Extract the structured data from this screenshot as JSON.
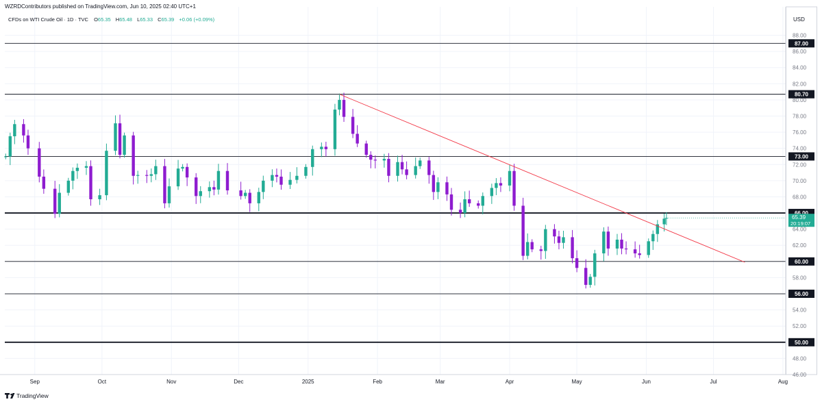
{
  "header": {
    "publish_line": "WZRDContributors published on TradingView.com, Jun 10, 2025 02:40 UTC+1",
    "symbol": "CFDs on WTI Crude Oil · 1D · TVC",
    "open_label": "O",
    "open_value": "65.35",
    "high_label": "H",
    "high_value": "65.48",
    "low_label": "L",
    "low_value": "65.33",
    "close_label": "C",
    "close_value": "65.39",
    "change": "+0.06 (+0.09%)"
  },
  "currency": "USD",
  "last_price": {
    "value": "65.39",
    "countdown": "20:19:07"
  },
  "footer": {
    "brand": "TradingView"
  },
  "colors": {
    "up": "#22ab94",
    "down": "#8e1ccf",
    "trendline": "#f23645",
    "level_line": "#131722",
    "last_price": "#22ab94"
  },
  "chart_data": {
    "type": "candlestick",
    "title": "CFDs on WTI Crude Oil · 1D · TVC",
    "ylim": [
      46,
      90
    ],
    "y_ticks": [
      "88.00",
      "86.00",
      "84.00",
      "82.00",
      "80.00",
      "78.00",
      "76.00",
      "74.00",
      "72.00",
      "70.00",
      "68.00",
      "66.00",
      "64.00",
      "62.00",
      "60.00",
      "58.00",
      "56.00",
      "54.00",
      "52.00",
      "50.00",
      "48.00",
      "46.00"
    ],
    "x_ticks": [
      {
        "label": "Sep",
        "date": "2024-09-01"
      },
      {
        "label": "Oct",
        "date": "2024-10-01"
      },
      {
        "label": "Nov",
        "date": "2024-11-01"
      },
      {
        "label": "Dec",
        "date": "2024-12-01"
      },
      {
        "label": "2025",
        "date": "2025-01-01"
      },
      {
        "label": "Feb",
        "date": "2025-02-01"
      },
      {
        "label": "Mar",
        "date": "2025-03-01"
      },
      {
        "label": "Apr",
        "date": "2025-04-01"
      },
      {
        "label": "May",
        "date": "2025-05-01"
      },
      {
        "label": "Jun",
        "date": "2025-06-01"
      },
      {
        "label": "Jul",
        "date": "2025-07-01"
      },
      {
        "label": "Aug",
        "date": "2025-08-01"
      }
    ],
    "horizontal_levels": [
      {
        "value": 87.0,
        "label": "87.00",
        "weight": "thin"
      },
      {
        "value": 80.7,
        "label": "80.70",
        "weight": "thin"
      },
      {
        "value": 73.0,
        "label": "73.00",
        "weight": "thin"
      },
      {
        "value": 66.0,
        "label": "66.00",
        "weight": "bold"
      },
      {
        "value": 60.0,
        "label": "60.00",
        "weight": "thin"
      },
      {
        "value": 56.0,
        "label": "56.00",
        "weight": "thin"
      },
      {
        "value": 50.0,
        "label": "50.00",
        "weight": "bold"
      }
    ],
    "trendline": {
      "start": {
        "date": "2025-01-15",
        "price": 80.7
      },
      "end": {
        "date": "2025-07-15",
        "price": 59.9
      }
    },
    "series": [
      {
        "date": "2024-08-19",
        "close": 73.0
      },
      {
        "date": "2024-08-21",
        "close": 75.5
      },
      {
        "date": "2024-08-23",
        "close": 77.0
      },
      {
        "date": "2024-08-27",
        "close": 75.6
      },
      {
        "date": "2024-08-29",
        "close": 74.0
      },
      {
        "date": "2024-09-03",
        "close": 70.5
      },
      {
        "date": "2024-09-05",
        "close": 69.0
      },
      {
        "date": "2024-09-10",
        "close": 65.9
      },
      {
        "date": "2024-09-12",
        "close": 68.5
      },
      {
        "date": "2024-09-16",
        "close": 70.0
      },
      {
        "date": "2024-09-18",
        "close": 71.2
      },
      {
        "date": "2024-09-20",
        "close": 71.6
      },
      {
        "date": "2024-09-24",
        "close": 71.8
      },
      {
        "date": "2024-09-26",
        "close": 67.7
      },
      {
        "date": "2024-09-30",
        "close": 68.2
      },
      {
        "date": "2024-10-03",
        "close": 73.7
      },
      {
        "date": "2024-10-07",
        "close": 77.1
      },
      {
        "date": "2024-10-09",
        "close": 73.2
      },
      {
        "date": "2024-10-11",
        "close": 75.6
      },
      {
        "date": "2024-10-15",
        "close": 70.6
      },
      {
        "date": "2024-10-17",
        "close": 70.7
      },
      {
        "date": "2024-10-21",
        "close": 70.6
      },
      {
        "date": "2024-10-23",
        "close": 70.8
      },
      {
        "date": "2024-10-25",
        "close": 71.8
      },
      {
        "date": "2024-10-29",
        "close": 67.2
      },
      {
        "date": "2024-10-31",
        "close": 69.3
      },
      {
        "date": "2024-11-04",
        "close": 71.5
      },
      {
        "date": "2024-11-06",
        "close": 71.7
      },
      {
        "date": "2024-11-08",
        "close": 70.4
      },
      {
        "date": "2024-11-12",
        "close": 68.1
      },
      {
        "date": "2024-11-14",
        "close": 68.7
      },
      {
        "date": "2024-11-18",
        "close": 69.2
      },
      {
        "date": "2024-11-20",
        "close": 68.9
      },
      {
        "date": "2024-11-22",
        "close": 71.2
      },
      {
        "date": "2024-11-26",
        "close": 68.8
      },
      {
        "date": "2024-12-02",
        "close": 68.1
      },
      {
        "date": "2024-12-04",
        "close": 68.5
      },
      {
        "date": "2024-12-06",
        "close": 67.2
      },
      {
        "date": "2024-12-10",
        "close": 68.6
      },
      {
        "date": "2024-12-12",
        "close": 70.0
      },
      {
        "date": "2024-12-16",
        "close": 70.7
      },
      {
        "date": "2024-12-18",
        "close": 70.5
      },
      {
        "date": "2024-12-20",
        "close": 69.5
      },
      {
        "date": "2024-12-24",
        "close": 70.1
      },
      {
        "date": "2024-12-27",
        "close": 70.6
      },
      {
        "date": "2024-12-31",
        "close": 71.7
      },
      {
        "date": "2025-01-03",
        "close": 73.9
      },
      {
        "date": "2025-01-07",
        "close": 74.2
      },
      {
        "date": "2025-01-09",
        "close": 73.9
      },
      {
        "date": "2025-01-13",
        "close": 78.8
      },
      {
        "date": "2025-01-15",
        "close": 80.0
      },
      {
        "date": "2025-01-17",
        "close": 77.9
      },
      {
        "date": "2025-01-21",
        "close": 75.8
      },
      {
        "date": "2025-01-23",
        "close": 74.6
      },
      {
        "date": "2025-01-27",
        "close": 73.2
      },
      {
        "date": "2025-01-29",
        "close": 72.6
      },
      {
        "date": "2025-01-31",
        "close": 72.5
      },
      {
        "date": "2025-02-04",
        "close": 72.7
      },
      {
        "date": "2025-02-06",
        "close": 70.6
      },
      {
        "date": "2025-02-10",
        "close": 72.3
      },
      {
        "date": "2025-02-12",
        "close": 71.4
      },
      {
        "date": "2025-02-14",
        "close": 70.7
      },
      {
        "date": "2025-02-18",
        "close": 71.8
      },
      {
        "date": "2025-02-20",
        "close": 72.5
      },
      {
        "date": "2025-02-24",
        "close": 70.7
      },
      {
        "date": "2025-02-26",
        "close": 68.6
      },
      {
        "date": "2025-02-28",
        "close": 69.8
      },
      {
        "date": "2025-03-04",
        "close": 68.3
      },
      {
        "date": "2025-03-06",
        "close": 66.4
      },
      {
        "date": "2025-03-10",
        "close": 66.0
      },
      {
        "date": "2025-03-12",
        "close": 67.7
      },
      {
        "date": "2025-03-14",
        "close": 67.2
      },
      {
        "date": "2025-03-18",
        "close": 66.9
      },
      {
        "date": "2025-03-20",
        "close": 68.1
      },
      {
        "date": "2025-03-24",
        "close": 69.1
      },
      {
        "date": "2025-03-26",
        "close": 69.7
      },
      {
        "date": "2025-03-28",
        "close": 69.4
      },
      {
        "date": "2025-04-01",
        "close": 71.2
      },
      {
        "date": "2025-04-03",
        "close": 66.9
      },
      {
        "date": "2025-04-07",
        "close": 60.7
      },
      {
        "date": "2025-04-09",
        "close": 62.4
      },
      {
        "date": "2025-04-11",
        "close": 61.5
      },
      {
        "date": "2025-04-15",
        "close": 61.3
      },
      {
        "date": "2025-04-17",
        "close": 64.0
      },
      {
        "date": "2025-04-21",
        "close": 63.1
      },
      {
        "date": "2025-04-23",
        "close": 62.3
      },
      {
        "date": "2025-04-25",
        "close": 63.0
      },
      {
        "date": "2025-04-29",
        "close": 60.4
      },
      {
        "date": "2025-05-01",
        "close": 59.2
      },
      {
        "date": "2025-05-05",
        "close": 57.1
      },
      {
        "date": "2025-05-07",
        "close": 58.1
      },
      {
        "date": "2025-05-09",
        "close": 61.0
      },
      {
        "date": "2025-05-13",
        "close": 63.7
      },
      {
        "date": "2025-05-15",
        "close": 61.6
      },
      {
        "date": "2025-05-19",
        "close": 62.7
      },
      {
        "date": "2025-05-21",
        "close": 61.6
      },
      {
        "date": "2025-05-23",
        "close": 61.5
      },
      {
        "date": "2025-05-27",
        "close": 61.0
      },
      {
        "date": "2025-05-29",
        "close": 60.8
      },
      {
        "date": "2025-06-02",
        "close": 62.5
      },
      {
        "date": "2025-06-04",
        "close": 63.4
      },
      {
        "date": "2025-06-06",
        "close": 64.6
      },
      {
        "date": "2025-06-09",
        "close": 65.3
      },
      {
        "date": "2025-06-10",
        "close": 65.39
      }
    ]
  }
}
